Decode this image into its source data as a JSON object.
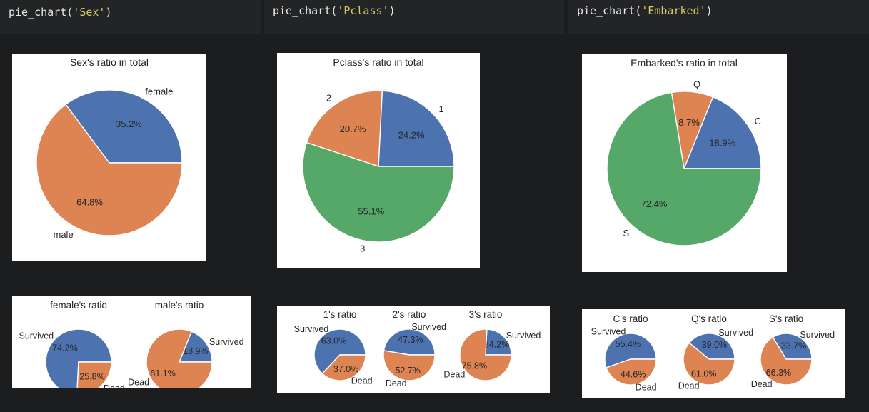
{
  "code_cells": [
    {
      "fn": "pie_chart(",
      "arg": "'Sex'",
      "close": ")"
    },
    {
      "fn": "pie_chart(",
      "arg": "'Pclass'",
      "close": ")"
    },
    {
      "fn": "pie_chart(",
      "arg": "'Embarked'",
      "close": ")"
    }
  ],
  "colors": {
    "blue": "#4c72b0",
    "orange": "#dd8452",
    "green": "#55a868"
  },
  "chart_data": [
    {
      "type": "pie",
      "title": "Sex's ratio in total",
      "labels": [
        "female",
        "male"
      ],
      "values": [
        35.2,
        64.8
      ],
      "value_labels": [
        "35.2%",
        "64.8%"
      ],
      "colors": [
        "#4c72b0",
        "#dd8452"
      ]
    },
    {
      "type": "pie",
      "title": "female's ratio",
      "labels": [
        "Survived",
        "Dead"
      ],
      "values": [
        74.2,
        25.8
      ],
      "value_labels": [
        "74.2%",
        "25.8%"
      ],
      "colors": [
        "#4c72b0",
        "#dd8452"
      ]
    },
    {
      "type": "pie",
      "title": "male's ratio",
      "labels": [
        "Survived",
        "Dead"
      ],
      "values": [
        18.9,
        81.1
      ],
      "value_labels": [
        "18.9%",
        "81.1%"
      ],
      "colors": [
        "#4c72b0",
        "#dd8452"
      ]
    },
    {
      "type": "pie",
      "title": "Pclass's ratio in total",
      "labels": [
        "1",
        "2",
        "3"
      ],
      "values": [
        24.2,
        20.7,
        55.1
      ],
      "value_labels": [
        "24.2%",
        "20.7%",
        "55.1%"
      ],
      "colors": [
        "#4c72b0",
        "#dd8452",
        "#55a868"
      ]
    },
    {
      "type": "pie",
      "title": "1's ratio",
      "labels": [
        "Survived",
        "Dead"
      ],
      "values": [
        63.0,
        37.0
      ],
      "value_labels": [
        "63.0%",
        "37.0%"
      ],
      "colors": [
        "#4c72b0",
        "#dd8452"
      ]
    },
    {
      "type": "pie",
      "title": "2's ratio",
      "labels": [
        "Survived",
        "Dead"
      ],
      "values": [
        47.3,
        52.7
      ],
      "value_labels": [
        "47.3%",
        "52.7%"
      ],
      "colors": [
        "#4c72b0",
        "#dd8452"
      ]
    },
    {
      "type": "pie",
      "title": "3's ratio",
      "labels": [
        "Survived",
        "Dead"
      ],
      "values": [
        24.2,
        75.8
      ],
      "value_labels": [
        "24.2%",
        "75.8%"
      ],
      "colors": [
        "#4c72b0",
        "#dd8452"
      ]
    },
    {
      "type": "pie",
      "title": "Embarked's ratio in total",
      "labels": [
        "C",
        "Q",
        "S"
      ],
      "values": [
        18.9,
        8.7,
        72.4
      ],
      "value_labels": [
        "18.9%",
        "8.7%",
        "72.4%"
      ],
      "colors": [
        "#4c72b0",
        "#dd8452",
        "#55a868"
      ]
    },
    {
      "type": "pie",
      "title": "C's ratio",
      "labels": [
        "Survived",
        "Dead"
      ],
      "values": [
        55.4,
        44.6
      ],
      "value_labels": [
        "55.4%",
        "44.6%"
      ],
      "colors": [
        "#4c72b0",
        "#dd8452"
      ]
    },
    {
      "type": "pie",
      "title": "Q's ratio",
      "labels": [
        "Survived",
        "Dead"
      ],
      "values": [
        39.0,
        61.0
      ],
      "value_labels": [
        "39.0%",
        "61.0%"
      ],
      "colors": [
        "#4c72b0",
        "#dd8452"
      ]
    },
    {
      "type": "pie",
      "title": "S's ratio",
      "labels": [
        "Survived",
        "Dead"
      ],
      "values": [
        33.7,
        66.3
      ],
      "value_labels": [
        "33.7%",
        "66.3%"
      ],
      "colors": [
        "#4c72b0",
        "#dd8452"
      ]
    }
  ]
}
